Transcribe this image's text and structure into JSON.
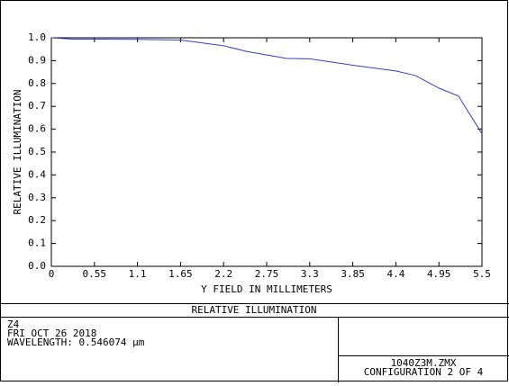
{
  "chart_data": {
    "type": "line",
    "x_label": "Y FIELD IN MILLIMETERS",
    "y_label": "RELATIVE ILLUMINATION",
    "x": [
      0,
      0.275,
      0.55,
      1.1,
      1.65,
      2.2,
      2.5,
      3.0,
      3.3,
      3.85,
      4.4,
      4.65,
      4.95,
      5.2,
      5.5
    ],
    "series": [
      {
        "color": "#3a3acc",
        "values": [
          1.0,
          0.994,
          0.994,
          0.993,
          0.99,
          0.965,
          0.94,
          0.91,
          0.908,
          0.88,
          0.855,
          0.835,
          0.78,
          0.745,
          0.58
        ]
      }
    ],
    "xlim": [
      0,
      5.5
    ],
    "xticks": [
      0,
      0.55,
      1.1,
      1.65,
      2.2,
      2.75,
      3.3,
      3.85,
      4.4,
      4.95,
      5.5
    ],
    "ylim": [
      0,
      1
    ],
    "yticks": [
      {
        "value": 0,
        "label": "0.0"
      },
      0.1,
      0.2,
      0.3,
      0.4,
      0.5,
      0.6,
      0.7,
      0.8,
      0.9,
      {
        "value": 1,
        "label": "1.0"
      }
    ]
  },
  "footer": {
    "title": "RELATIVE ILLUMINATION",
    "lines": [
      "Z4",
      "FRI OCT 26 2018",
      "WAVELENGTH: 0.546074 µm"
    ],
    "file": "1040Z3M.ZMX",
    "config": "CONFIGURATION 2 OF 4"
  }
}
